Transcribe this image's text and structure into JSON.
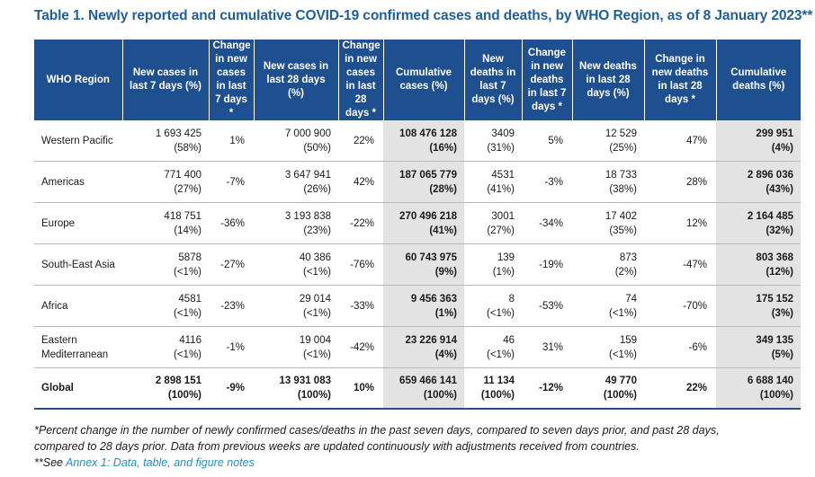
{
  "title": "Table 1. Newly reported and cumulative COVID-19 confirmed cases and deaths, by WHO Region, as of 8 January 2023**",
  "headers": [
    "WHO Region",
    "New cases in last 7 days (%)",
    "Change in new cases in last 7 days *",
    "New cases in last 28 days (%)",
    "Change in new cases in last 28 days *",
    "Cumulative cases (%)",
    "New deaths in last 7 days (%)",
    "Change in new deaths in last 7 days *",
    "New deaths in last 28 days (%)",
    "Change in new deaths in last 28 days *",
    "Cumulative deaths (%)"
  ],
  "rows": [
    {
      "region": "Western Pacific",
      "c7": "1 693 425",
      "c7p": "(58%)",
      "c7chg": "1%",
      "c28": "7 000 900",
      "c28p": "(50%)",
      "c28chg": "22%",
      "cum": "108 476 128",
      "cump": "(16%)",
      "d7": "3409",
      "d7p": "(31%)",
      "d7chg": "5%",
      "d28": "12 529",
      "d28p": "(25%)",
      "d28chg": "47%",
      "dcum": "299 951",
      "dcump": "(4%)"
    },
    {
      "region": "Americas",
      "c7": "771 400",
      "c7p": "(27%)",
      "c7chg": "-7%",
      "c28": "3 647 941",
      "c28p": "(26%)",
      "c28chg": "42%",
      "cum": "187 065 779",
      "cump": "(28%)",
      "d7": "4531",
      "d7p": "(41%)",
      "d7chg": "-3%",
      "d28": "18 733",
      "d28p": "(38%)",
      "d28chg": "28%",
      "dcum": "2 896 036",
      "dcump": "(43%)"
    },
    {
      "region": "Europe",
      "c7": "418 751",
      "c7p": "(14%)",
      "c7chg": "-36%",
      "c28": "3 193 838",
      "c28p": "(23%)",
      "c28chg": "-22%",
      "cum": "270 496 218",
      "cump": "(41%)",
      "d7": "3001",
      "d7p": "(27%)",
      "d7chg": "-34%",
      "d28": "17 402",
      "d28p": "(35%)",
      "d28chg": "12%",
      "dcum": "2 164 485",
      "dcump": "(32%)"
    },
    {
      "region": "South-East Asia",
      "c7": "5878",
      "c7p": "(<1%)",
      "c7chg": "-27%",
      "c28": "40 386",
      "c28p": "(<1%)",
      "c28chg": "-76%",
      "cum": "60 743 975",
      "cump": "(9%)",
      "d7": "139",
      "d7p": "(1%)",
      "d7chg": "-19%",
      "d28": "873",
      "d28p": "(2%)",
      "d28chg": "-47%",
      "dcum": "803 368",
      "dcump": "(12%)"
    },
    {
      "region": "Africa",
      "c7": "4581",
      "c7p": "(<1%)",
      "c7chg": "-23%",
      "c28": "29 014",
      "c28p": "(<1%)",
      "c28chg": "-33%",
      "cum": "9 456 363",
      "cump": "(1%)",
      "d7": "8",
      "d7p": "(<1%)",
      "d7chg": "-53%",
      "d28": "74",
      "d28p": "(<1%)",
      "d28chg": "-70%",
      "dcum": "175 152",
      "dcump": "(3%)"
    },
    {
      "region": "Eastern Mediterranean",
      "c7": "4116",
      "c7p": "(<1%)",
      "c7chg": "-1%",
      "c28": "19 004",
      "c28p": "(<1%)",
      "c28chg": "-42%",
      "cum": "23 226 914",
      "cump": "(4%)",
      "d7": "46",
      "d7p": "(<1%)",
      "d7chg": "31%",
      "d28": "159",
      "d28p": "(<1%)",
      "d28chg": "-6%",
      "dcum": "349 135",
      "dcump": "(5%)"
    }
  ],
  "global": {
    "region": "Global",
    "c7": "2 898 151",
    "c7p": "(100%)",
    "c7chg": "-9%",
    "c28": "13 931 083",
    "c28p": "(100%)",
    "c28chg": "10%",
    "cum": "659 466 141",
    "cump": "(100%)",
    "d7": "11 134",
    "d7p": "(100%)",
    "d7chg": "-12%",
    "d28": "49 770",
    "d28p": "(100%)",
    "d28chg": "22%",
    "dcum": "6 688 140",
    "dcump": "(100%)"
  },
  "notes": {
    "line1": "*Percent change in the number of newly confirmed cases/deaths in the past seven days, compared to seven days prior, and past 28 days,",
    "line2": "compared to 28 days prior. Data from previous weeks are updated continuously with adjustments received from countries.",
    "line3_prefix": "**See ",
    "line3_link": "Annex 1: Data, table, and figure notes"
  }
}
